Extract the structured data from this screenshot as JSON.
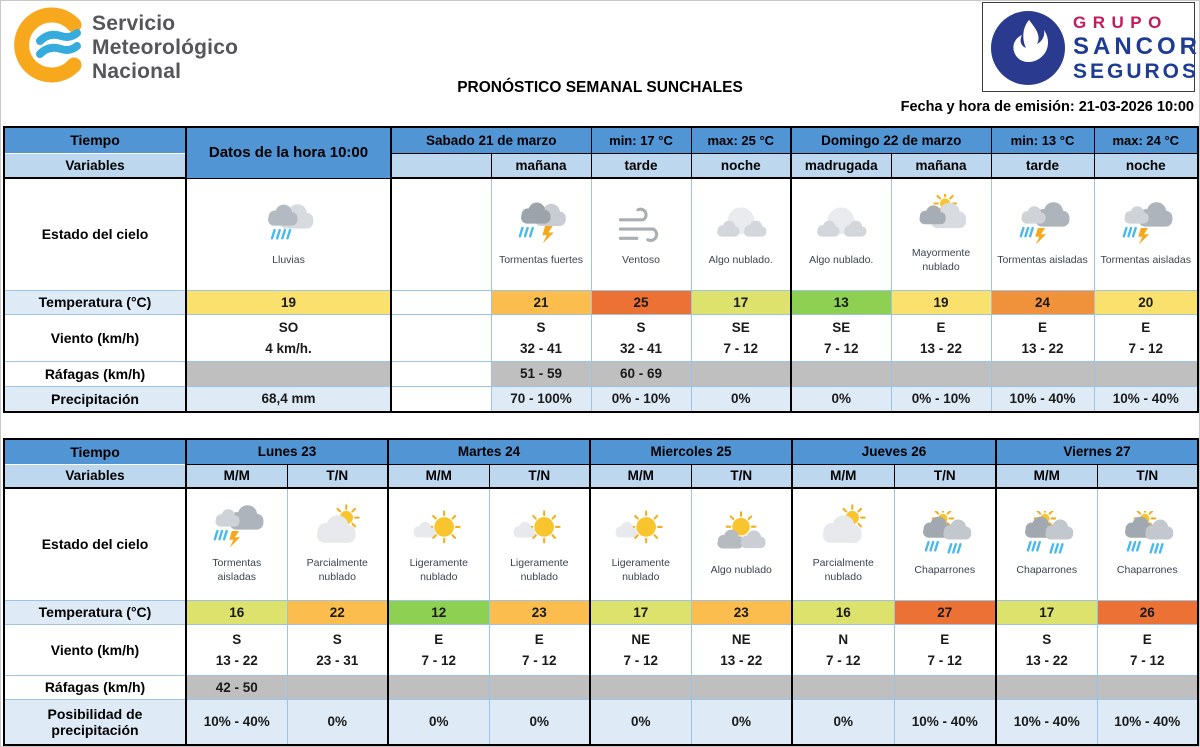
{
  "header": {
    "title": "PRONÓSTICO SEMANAL SUNCHALES",
    "emission": "Fecha y hora de emisión: 21-03-2026 10:00",
    "smn_lines": [
      "Servicio",
      "Meteorológico",
      "Nacional"
    ],
    "sancor_lines": [
      "GRUPO",
      "SANCOR",
      "SEGUROS"
    ]
  },
  "colors": {
    "header_blue": "#5295D4",
    "subheader_blue": "#BDD7EE",
    "light_blue_row": "#DEEAF6",
    "gust_gray": "#BFBFBF",
    "grid_blue": "#9DC3E6",
    "smn_orange": "#F8A81C",
    "smn_wave_blue": "#36ACDE",
    "smn_text_gray": "#55565A",
    "sancor_circle_blue": "#2A3B8F",
    "sancor_text_blue": "#1F3C94",
    "sancor_grupo_red": "#C4195C"
  },
  "corner": {
    "tiempo": "Tiempo",
    "variables": "Variables"
  },
  "table1": {
    "datos_header": "Datos de la hora 10:00",
    "row_labels": {
      "sky": "Estado del cielo",
      "temp": "Temperatura (°C)",
      "wind": "Viento (km/h)",
      "gusts": "Ráfagas (km/h)",
      "precip": "Precipitación"
    },
    "days": [
      {
        "title": "Sabado 21 de marzo",
        "min": "min: 17 °C",
        "max": "max: 25 °C"
      },
      {
        "title": "Domingo 22 de marzo",
        "min": "min: 13 °C",
        "max": "max: 24 °C"
      }
    ],
    "columns": [
      {
        "sub": "",
        "sky_icon": "rain",
        "sky_label": "Lluvias",
        "temp": "19",
        "temp_color": "#FAE16E",
        "wind_dir": "SO",
        "wind_range": "4 km/h.",
        "gusts": "",
        "precip": "68,4 mm"
      },
      {
        "sub": "",
        "sky_icon": "",
        "sky_label": "",
        "temp": "",
        "temp_color": "",
        "wind_dir": "",
        "wind_range": "",
        "gusts": "",
        "precip": ""
      },
      {
        "sub": "mañana",
        "sky_icon": "storm-heavy",
        "sky_label": "Tormentas fuertes",
        "temp": "21",
        "temp_color": "#FBBE4E",
        "wind_dir": "S",
        "wind_range": "32 - 41",
        "gusts": "51 - 59",
        "precip": "70 - 100%"
      },
      {
        "sub": "tarde",
        "sky_icon": "wind",
        "sky_label": "Ventoso",
        "temp": "25",
        "temp_color": "#EC7134",
        "wind_dir": "S",
        "wind_range": "32 - 41",
        "gusts": "60 - 69",
        "precip": "0% - 10%"
      },
      {
        "sub": "noche",
        "sky_icon": "cloud-night",
        "sky_label": "Algo nublado.",
        "temp": "17",
        "temp_color": "#DCE26B",
        "wind_dir": "SE",
        "wind_range": "7 - 12",
        "gusts": "",
        "precip": "0%"
      },
      {
        "sub": "madrugada",
        "sky_icon": "cloud-night",
        "sky_label": "Algo nublado.",
        "temp": "13",
        "temp_color": "#8ED051",
        "wind_dir": "SE",
        "wind_range": "7 - 12",
        "gusts": "",
        "precip": "0%"
      },
      {
        "sub": "mañana",
        "sky_icon": "mostly-cloudy",
        "sky_label": "Mayormente nublado",
        "temp": "19",
        "temp_color": "#FAE16E",
        "wind_dir": "E",
        "wind_range": "13 - 22",
        "gusts": "",
        "precip": "0% - 10%"
      },
      {
        "sub": "tarde",
        "sky_icon": "storm-isolated",
        "sky_label": "Tormentas aisladas",
        "temp": "24",
        "temp_color": "#F0913C",
        "wind_dir": "E",
        "wind_range": "13 - 22",
        "gusts": "",
        "precip": "10% - 40%"
      },
      {
        "sub": "noche",
        "sky_icon": "storm-isolated",
        "sky_label": "Tormentas aisladas",
        "temp": "20",
        "temp_color": "#FAE16E",
        "wind_dir": "E",
        "wind_range": "7 - 12",
        "gusts": "",
        "precip": "10% - 40%"
      }
    ]
  },
  "table2": {
    "row_labels": {
      "sky": "Estado del cielo",
      "temp": "Temperatura (°C)",
      "wind": "Viento (km/h)",
      "gusts": "Ráfagas (km/h)",
      "precip": "Posibilidad de precipitación"
    },
    "days": [
      {
        "title": "Lunes 23"
      },
      {
        "title": "Martes 24"
      },
      {
        "title": "Miercoles 25"
      },
      {
        "title": "Jueves 26"
      },
      {
        "title": "Viernes 27"
      }
    ],
    "columns": [
      {
        "sub": "M/M",
        "sky_icon": "storm-isolated",
        "sky_label": "Tormentas aisladas",
        "temp": "16",
        "temp_color": "#DCE26B",
        "wind_dir": "S",
        "wind_range": "13 - 22",
        "gusts": "42 - 50",
        "precip": "10% - 40%"
      },
      {
        "sub": "T/N",
        "sky_icon": "partly-cloudy",
        "sky_label": "Parcialmente nublado",
        "temp": "22",
        "temp_color": "#FBBE4E",
        "wind_dir": "S",
        "wind_range": "23 - 31",
        "gusts": "",
        "precip": "0%"
      },
      {
        "sub": "M/M",
        "sky_icon": "slightly-cloudy",
        "sky_label": "Ligeramente nublado",
        "temp": "12",
        "temp_color": "#8ED051",
        "wind_dir": "E",
        "wind_range": "7 - 12",
        "gusts": "",
        "precip": "0%"
      },
      {
        "sub": "T/N",
        "sky_icon": "slightly-cloudy",
        "sky_label": "Ligeramente nublado",
        "temp": "23",
        "temp_color": "#FBBE4E",
        "wind_dir": "E",
        "wind_range": "7 - 12",
        "gusts": "",
        "precip": "0%"
      },
      {
        "sub": "M/M",
        "sky_icon": "slightly-cloudy",
        "sky_label": "Ligeramente nublado",
        "temp": "17",
        "temp_color": "#DCE26B",
        "wind_dir": "NE",
        "wind_range": "7 - 12",
        "gusts": "",
        "precip": "0%"
      },
      {
        "sub": "T/N",
        "sky_icon": "some-clouds-day",
        "sky_label": "Algo nublado",
        "temp": "23",
        "temp_color": "#FBBE4E",
        "wind_dir": "NE",
        "wind_range": "13 - 22",
        "gusts": "",
        "precip": "0%"
      },
      {
        "sub": "M/M",
        "sky_icon": "partly-cloudy",
        "sky_label": "Parcialmente nublado",
        "temp": "16",
        "temp_color": "#DCE26B",
        "wind_dir": "N",
        "wind_range": "7 - 12",
        "gusts": "",
        "precip": "0%"
      },
      {
        "sub": "T/N",
        "sky_icon": "showers",
        "sky_label": "Chaparrones",
        "temp": "27",
        "temp_color": "#EC7134",
        "wind_dir": "E",
        "wind_range": "7 - 12",
        "gusts": "",
        "precip": "10% - 40%"
      },
      {
        "sub": "M/M",
        "sky_icon": "showers",
        "sky_label": "Chaparrones",
        "temp": "17",
        "temp_color": "#DCE26B",
        "wind_dir": "S",
        "wind_range": "13 - 22",
        "gusts": "",
        "precip": "10% - 40%"
      },
      {
        "sub": "T/N",
        "sky_icon": "showers",
        "sky_label": "Chaparrones",
        "temp": "26",
        "temp_color": "#EC7134",
        "wind_dir": "E",
        "wind_range": "7 - 12",
        "gusts": "",
        "precip": "10% - 40%"
      }
    ]
  }
}
